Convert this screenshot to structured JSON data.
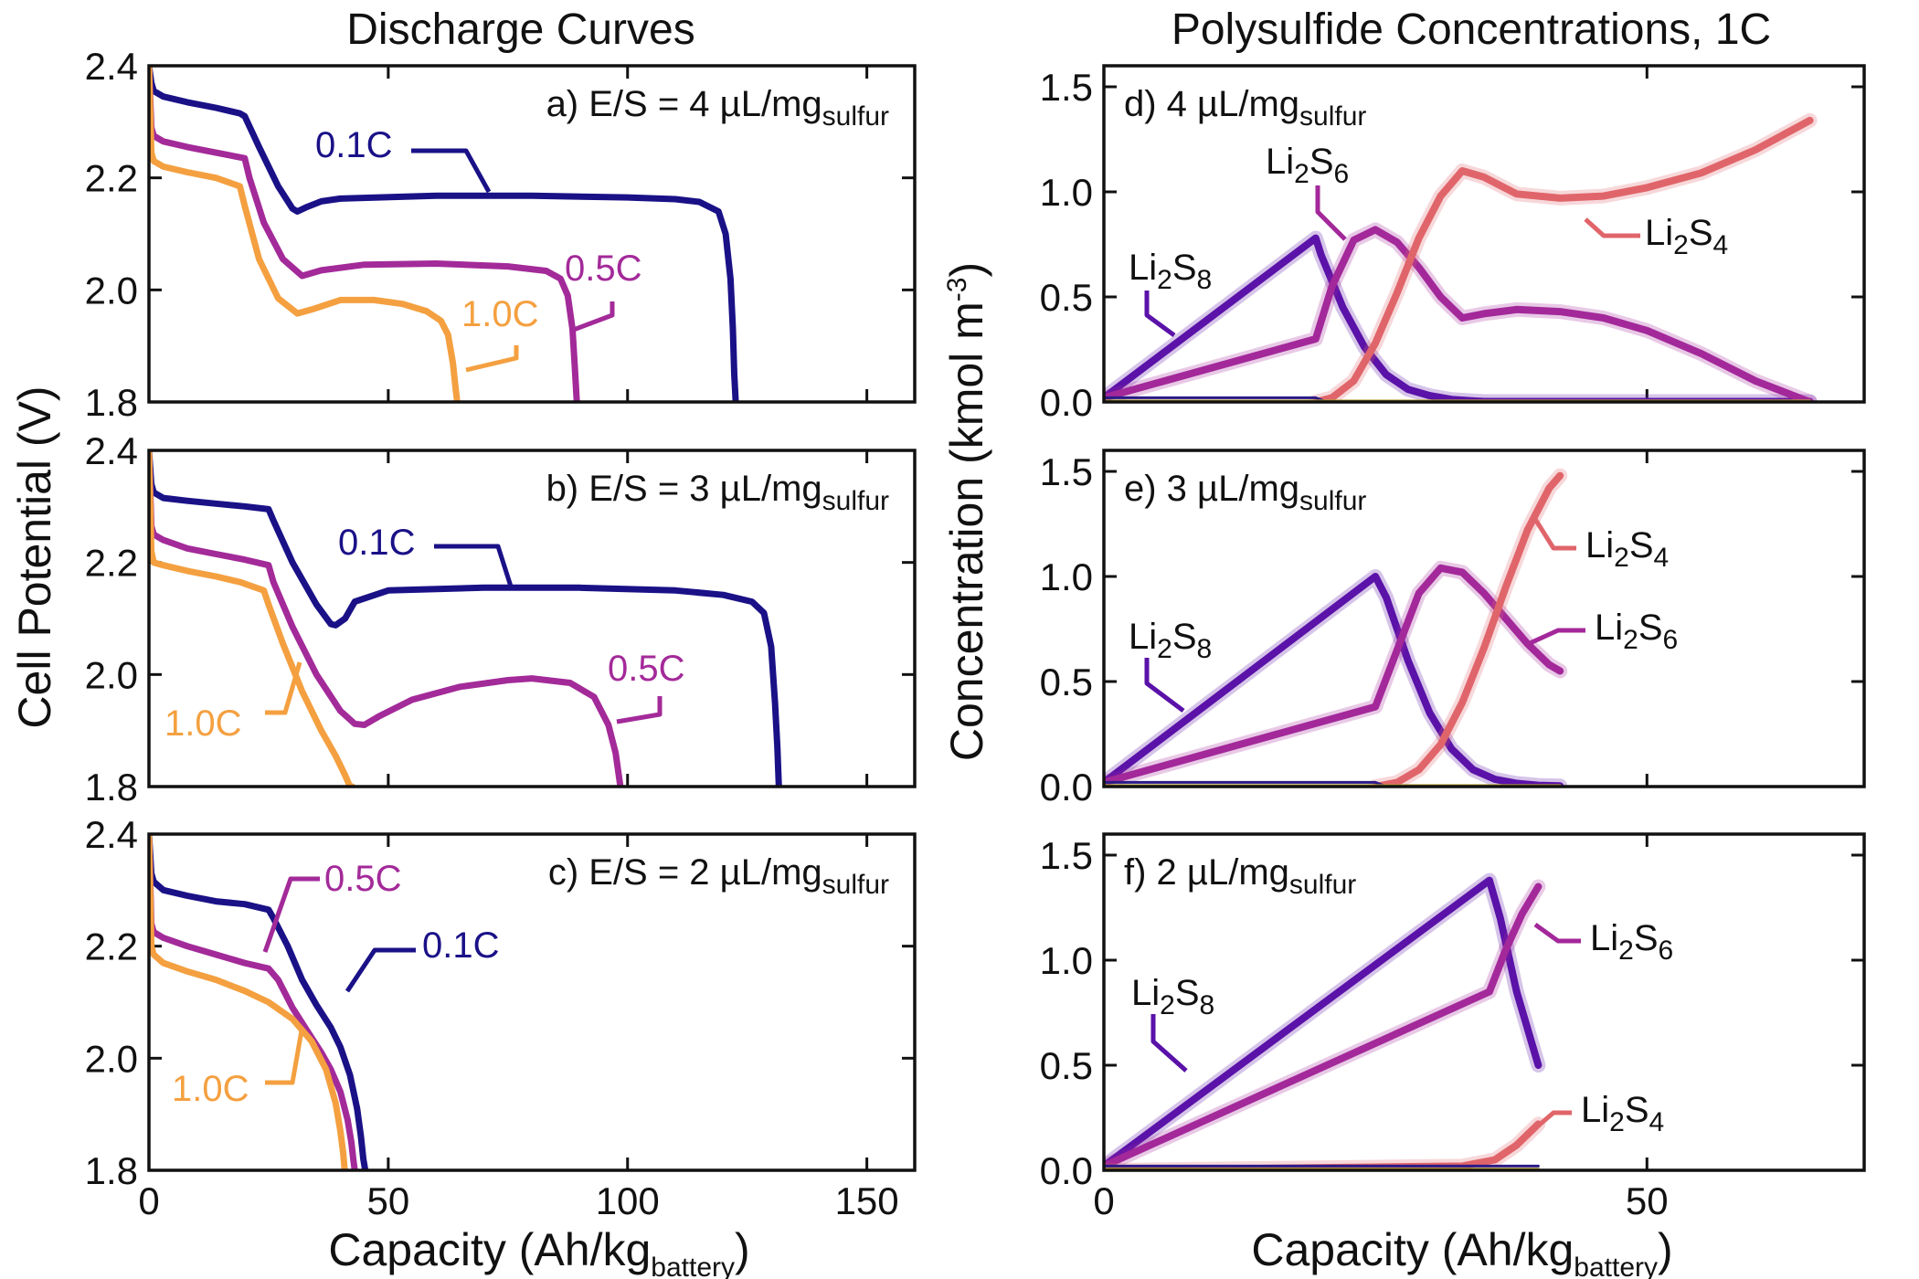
{
  "colors": {
    "c01": "#1a1187",
    "c05": "#a32a99",
    "c10": "#f4a040",
    "li2s8": "#5a12a8",
    "li2s6": "#a3289a",
    "li2s4": "#e0656a",
    "minor1": "#2a1a88",
    "minor2": "#b8a030"
  },
  "left_column": {
    "title": "Discharge Curves",
    "ylabel": "Cell Potential (V)",
    "xlabel_main": "Capacity (Ah/kg",
    "xlabel_sub": "battery",
    "xlabel_close": ")",
    "xticks": [
      "0",
      "50",
      "100",
      "150"
    ],
    "yticks": [
      "1.8",
      "2.0",
      "2.2",
      "2.4"
    ]
  },
  "right_column": {
    "title": "Polysulfide Concentrations, 1C",
    "ylabel_main": "Concentration (kmol m",
    "ylabel_sup": "-3",
    "ylabel_close": ")",
    "xlabel_main": "Capacity (Ah/kg",
    "xlabel_sub": "battery",
    "xlabel_close": ")",
    "xticks": [
      "0",
      "50"
    ],
    "yticks": [
      "0.0",
      "0.5",
      "1.0",
      "1.5"
    ]
  },
  "species": {
    "li": "Li",
    "s": "S",
    "n2": "2",
    "n8": "8",
    "n6": "6",
    "n4": "4"
  },
  "chart_data": [
    {
      "id": "a",
      "type": "line",
      "label_main": "a) E/S = 4 µL/mg",
      "label_sub": "sulfur",
      "xlim": [
        0,
        160
      ],
      "ylim": [
        1.8,
        2.4
      ],
      "series": [
        {
          "name": "0.1C",
          "color": "#1a1187",
          "x": [
            0,
            0.5,
            1,
            3,
            8,
            14,
            19,
            20,
            23,
            27,
            30,
            31,
            33,
            36,
            40,
            60,
            80,
            100,
            110,
            115,
            119,
            120.5,
            121.5,
            122,
            122.3,
            122.6
          ],
          "y": [
            2.4,
            2.37,
            2.355,
            2.345,
            2.335,
            2.325,
            2.315,
            2.31,
            2.255,
            2.185,
            2.145,
            2.14,
            2.148,
            2.158,
            2.163,
            2.168,
            2.168,
            2.165,
            2.162,
            2.157,
            2.14,
            2.1,
            2.02,
            1.93,
            1.85,
            1.8
          ]
        },
        {
          "name": "0.5C",
          "color": "#a32a99",
          "x": [
            0,
            0.5,
            1,
            3,
            8,
            14,
            20,
            21,
            24,
            28,
            32,
            36,
            45,
            60,
            75,
            83,
            86,
            87.5,
            88.5,
            89,
            89.4
          ],
          "y": [
            2.4,
            2.29,
            2.275,
            2.265,
            2.255,
            2.245,
            2.235,
            2.2,
            2.12,
            2.055,
            2.025,
            2.035,
            2.045,
            2.047,
            2.042,
            2.034,
            2.02,
            1.99,
            1.93,
            1.86,
            1.8
          ]
        },
        {
          "name": "1.0C",
          "color": "#f4a040",
          "x": [
            0,
            0.5,
            1,
            3,
            8,
            14,
            19,
            20,
            23,
            27,
            31,
            34,
            40,
            47,
            53,
            58,
            61,
            62.5,
            63.5,
            64,
            64.4
          ],
          "y": [
            2.4,
            2.245,
            2.23,
            2.22,
            2.21,
            2.2,
            2.185,
            2.15,
            2.055,
            1.985,
            1.958,
            1.965,
            1.982,
            1.982,
            1.975,
            1.962,
            1.945,
            1.92,
            1.87,
            1.83,
            1.8
          ]
        }
      ],
      "labels": [
        {
          "text": "0.1C",
          "color": "#1a1187"
        },
        {
          "text": "0.5C",
          "color": "#a32a99"
        },
        {
          "text": "1.0C",
          "color": "#f4a040"
        }
      ]
    },
    {
      "id": "b",
      "type": "line",
      "label_main": "b) E/S = 3 µL/mg",
      "label_sub": "sulfur",
      "xlim": [
        0,
        160
      ],
      "ylim": [
        1.8,
        2.4
      ],
      "series": [
        {
          "name": "0.1C",
          "color": "#1a1187",
          "x": [
            0,
            0.5,
            1,
            3,
            8,
            14,
            20,
            25,
            26,
            30,
            35,
            38,
            39,
            41,
            43,
            50,
            70,
            90,
            110,
            120,
            126,
            128.5,
            130,
            130.8,
            131.3,
            131.6
          ],
          "y": [
            2.4,
            2.34,
            2.325,
            2.315,
            2.31,
            2.305,
            2.3,
            2.295,
            2.275,
            2.2,
            2.125,
            2.09,
            2.088,
            2.1,
            2.13,
            2.15,
            2.155,
            2.155,
            2.15,
            2.142,
            2.13,
            2.11,
            2.05,
            1.95,
            1.87,
            1.8
          ]
        },
        {
          "name": "0.5C",
          "color": "#a32a99",
          "x": [
            0,
            0.5,
            1,
            3,
            8,
            14,
            20,
            25,
            26,
            30,
            35,
            40,
            43,
            45,
            48,
            55,
            65,
            75,
            80,
            88,
            93,
            96,
            97.5,
            98,
            98.5
          ],
          "y": [
            2.4,
            2.265,
            2.25,
            2.24,
            2.225,
            2.215,
            2.205,
            2.195,
            2.165,
            2.085,
            2.0,
            1.935,
            1.912,
            1.91,
            1.925,
            1.955,
            1.978,
            1.99,
            1.993,
            1.985,
            1.96,
            1.91,
            1.86,
            1.83,
            1.8
          ]
        },
        {
          "name": "1.0C",
          "color": "#f4a040",
          "x": [
            0,
            0.5,
            1,
            3,
            8,
            14,
            19,
            24,
            25,
            28,
            32,
            36,
            39,
            41,
            42,
            42.5
          ],
          "y": [
            2.4,
            2.22,
            2.2,
            2.195,
            2.185,
            2.175,
            2.165,
            2.15,
            2.125,
            2.055,
            1.97,
            1.9,
            1.855,
            1.82,
            1.8,
            1.8
          ]
        }
      ],
      "labels": [
        {
          "text": "0.1C",
          "color": "#1a1187"
        },
        {
          "text": "0.5C",
          "color": "#a32a99"
        },
        {
          "text": "1.0C",
          "color": "#f4a040"
        }
      ]
    },
    {
      "id": "c",
      "type": "line",
      "label_main": "c) E/S = 2 µL/mg",
      "label_sub": "sulfur",
      "xlim": [
        0,
        160
      ],
      "ylim": [
        1.8,
        2.4
      ],
      "series": [
        {
          "name": "0.1C",
          "color": "#1a1187",
          "x": [
            0,
            0.5,
            1,
            3,
            8,
            14,
            20,
            25,
            26,
            29,
            32,
            35,
            38,
            40,
            42,
            43.5,
            44.3,
            44.8,
            45.2
          ],
          "y": [
            2.4,
            2.33,
            2.315,
            2.3,
            2.29,
            2.28,
            2.275,
            2.265,
            2.25,
            2.2,
            2.14,
            2.095,
            2.055,
            2.02,
            1.97,
            1.91,
            1.86,
            1.82,
            1.8
          ]
        },
        {
          "name": "0.5C",
          "color": "#a32a99",
          "x": [
            0,
            0.5,
            1,
            3,
            8,
            14,
            20,
            25,
            27,
            30,
            33,
            36,
            38,
            40,
            41.5,
            42.3,
            42.7,
            43
          ],
          "y": [
            2.4,
            2.24,
            2.225,
            2.215,
            2.2,
            2.185,
            2.17,
            2.16,
            2.14,
            2.09,
            2.05,
            2.01,
            1.98,
            1.94,
            1.89,
            1.85,
            1.82,
            1.8
          ]
        },
        {
          "name": "1.0C",
          "color": "#f4a040",
          "x": [
            0,
            0.5,
            1,
            3,
            8,
            14,
            20,
            25,
            30,
            34,
            37,
            39,
            40,
            40.6,
            40.9
          ],
          "y": [
            2.4,
            2.2,
            2.185,
            2.17,
            2.155,
            2.14,
            2.12,
            2.1,
            2.07,
            2.03,
            1.98,
            1.92,
            1.87,
            1.83,
            1.8
          ]
        }
      ],
      "labels": [
        {
          "text": "0.5C",
          "color": "#a32a99"
        },
        {
          "text": "0.1C",
          "color": "#1a1187"
        },
        {
          "text": "1.0C",
          "color": "#f4a040"
        }
      ]
    },
    {
      "id": "d",
      "type": "line",
      "label_main": "d) 4 µL/mg",
      "label_sub": "sulfur",
      "xlim": [
        0,
        70
      ],
      "ylim": [
        0,
        1.6
      ],
      "series": [
        {
          "name": "Li2S8",
          "color": "#5a12a8",
          "x": [
            0,
            19.5,
            20,
            22,
            24,
            26,
            28,
            30,
            32,
            34,
            35,
            65
          ],
          "y": [
            0.02,
            0.78,
            0.7,
            0.45,
            0.26,
            0.13,
            0.06,
            0.03,
            0.012,
            0.005,
            0.002,
            0.002
          ]
        },
        {
          "name": "Li2S6",
          "color": "#a3289a",
          "x": [
            0,
            19.5,
            21,
            23,
            25,
            27,
            29,
            31,
            33,
            35,
            38,
            42,
            46,
            50,
            55,
            60,
            65
          ],
          "y": [
            0.02,
            0.3,
            0.55,
            0.77,
            0.82,
            0.76,
            0.64,
            0.5,
            0.4,
            0.42,
            0.44,
            0.43,
            0.4,
            0.34,
            0.23,
            0.1,
            0.0
          ]
        },
        {
          "name": "Li2S4",
          "color": "#e0656a",
          "x": [
            19.5,
            21,
            23,
            25,
            27,
            29,
            31,
            33,
            35,
            38,
            42,
            46,
            50,
            55,
            60,
            65
          ],
          "y": [
            0.0,
            0.02,
            0.1,
            0.28,
            0.52,
            0.78,
            0.98,
            1.1,
            1.07,
            0.99,
            0.97,
            0.98,
            1.02,
            1.09,
            1.2,
            1.34
          ]
        },
        {
          "name": "",
          "color": "#2a1a88",
          "x": [
            0,
            19.5,
            20.5,
            65
          ],
          "y": [
            0.02,
            0.02,
            0.0,
            0.0
          ]
        },
        {
          "name": "",
          "color": "#b8a030",
          "x": [
            0,
            65
          ],
          "y": [
            0.005,
            0.005
          ]
        }
      ],
      "labels": [
        {
          "text": "Li2S8"
        },
        {
          "text": "Li2S6"
        },
        {
          "text": "Li2S4"
        }
      ]
    },
    {
      "id": "e",
      "type": "line",
      "label_main": "e) 3 µL/mg",
      "label_sub": "sulfur",
      "xlim": [
        0,
        70
      ],
      "ylim": [
        0,
        1.6
      ],
      "series": [
        {
          "name": "Li2S8",
          "color": "#5a12a8",
          "x": [
            0,
            25,
            26,
            28,
            30,
            32,
            34,
            36,
            38,
            40,
            42
          ],
          "y": [
            0.02,
            1.0,
            0.9,
            0.6,
            0.35,
            0.18,
            0.08,
            0.035,
            0.015,
            0.006,
            0.003
          ]
        },
        {
          "name": "Li2S6",
          "color": "#a3289a",
          "x": [
            0,
            25,
            27,
            29,
            31,
            33,
            35,
            37,
            39,
            41,
            42
          ],
          "y": [
            0.02,
            0.38,
            0.65,
            0.92,
            1.04,
            1.02,
            0.92,
            0.8,
            0.68,
            0.58,
            0.55
          ]
        },
        {
          "name": "Li2S4",
          "color": "#e0656a",
          "x": [
            25,
            27,
            29,
            31,
            33,
            35,
            37,
            39,
            41,
            42
          ],
          "y": [
            0.0,
            0.02,
            0.08,
            0.2,
            0.4,
            0.66,
            0.95,
            1.22,
            1.42,
            1.48
          ]
        },
        {
          "name": "",
          "color": "#2a1a88",
          "x": [
            0,
            25,
            26,
            42
          ],
          "y": [
            0.02,
            0.02,
            0.0,
            0.0
          ]
        },
        {
          "name": "",
          "color": "#b8a030",
          "x": [
            0,
            42
          ],
          "y": [
            0.005,
            0.005
          ]
        }
      ],
      "labels": [
        {
          "text": "Li2S8"
        },
        {
          "text": "Li2S4"
        },
        {
          "text": "Li2S6"
        }
      ]
    },
    {
      "id": "f",
      "type": "line",
      "label_main": "f) 2 µL/mg",
      "label_sub": "sulfur",
      "xlim": [
        0,
        70
      ],
      "ylim": [
        0,
        1.6
      ],
      "series": [
        {
          "name": "Li2S8",
          "color": "#5a12a8",
          "x": [
            0,
            35.5,
            36.5,
            38,
            40
          ],
          "y": [
            0.02,
            1.38,
            1.2,
            0.85,
            0.5
          ]
        },
        {
          "name": "Li2S6",
          "color": "#a3289a",
          "x": [
            0,
            35.5,
            37,
            38.5,
            40
          ],
          "y": [
            0.02,
            0.85,
            1.05,
            1.22,
            1.35
          ]
        },
        {
          "name": "Li2S4",
          "color": "#e0656a",
          "x": [
            0,
            33,
            36,
            38,
            40
          ],
          "y": [
            0.0,
            0.02,
            0.05,
            0.12,
            0.22
          ]
        },
        {
          "name": "",
          "color": "#2a1a88",
          "x": [
            0,
            40
          ],
          "y": [
            0.02,
            0.02
          ]
        },
        {
          "name": "",
          "color": "#b8a030",
          "x": [
            0,
            40
          ],
          "y": [
            0.005,
            0.005
          ]
        }
      ],
      "labels": [
        {
          "text": "Li2S8"
        },
        {
          "text": "Li2S6"
        },
        {
          "text": "Li2S4"
        }
      ]
    }
  ]
}
